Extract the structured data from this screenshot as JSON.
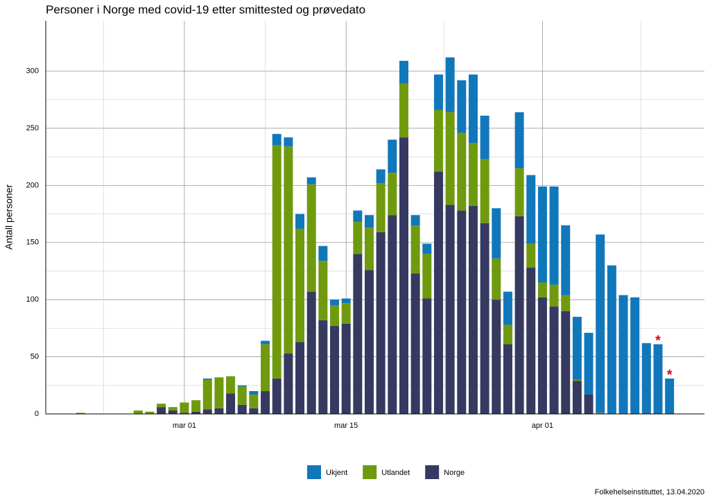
{
  "chart_data": {
    "type": "stacked_bar",
    "title": "Personer i Norge med covid-19 etter smittested og prøvedato",
    "y_label": "Antall personer",
    "source": "Folkehelseinstituttet, 13.04.2020",
    "categories": [
      null,
      null,
      null,
      null,
      null,
      null,
      null,
      null,
      null,
      "mar 01",
      null,
      null,
      null,
      null,
      null,
      null,
      null,
      null,
      null,
      null,
      null,
      null,
      null,
      "mar 15",
      null,
      null,
      null,
      null,
      null,
      null,
      null,
      null,
      null,
      null,
      null,
      null,
      null,
      null,
      null,
      null,
      "apr 01",
      null,
      null,
      null,
      null,
      null,
      null,
      null,
      null,
      null,
      null,
      null
    ],
    "series": [
      {
        "name": "Norge",
        "color": "#363a60",
        "values": [
          0,
          0,
          0,
          0,
          0,
          0,
          0,
          6,
          3,
          1,
          2,
          4,
          5,
          18,
          8,
          5,
          20,
          31,
          53,
          63,
          107,
          82,
          77,
          79,
          140,
          126,
          159,
          174,
          242,
          123,
          101,
          212,
          183,
          178,
          182,
          167,
          100,
          61,
          173,
          128,
          102,
          94,
          90,
          29,
          17,
          0,
          0,
          0,
          0,
          0,
          0,
          0
        ]
      },
      {
        "name": "Utlandet",
        "color": "#6f9a0e",
        "values": [
          1,
          0,
          0,
          0,
          0,
          3,
          2,
          3,
          3,
          9,
          10,
          26,
          27,
          15,
          16,
          12,
          41,
          204,
          181,
          99,
          94,
          52,
          18,
          18,
          28,
          37,
          43,
          37,
          47,
          42,
          39,
          54,
          81,
          68,
          55,
          56,
          36,
          17,
          42,
          21,
          13,
          19,
          14,
          1,
          0,
          1,
          0,
          0,
          0,
          0,
          0,
          0
        ]
      },
      {
        "name": "Ukjent",
        "color": "#1177bb",
        "values": [
          0,
          0,
          0,
          0,
          0,
          0,
          0,
          0,
          0,
          0,
          0,
          1,
          0,
          0,
          1,
          3,
          3,
          10,
          8,
          13,
          6,
          13,
          5,
          4,
          10,
          11,
          12,
          29,
          20,
          9,
          9,
          31,
          48,
          46,
          60,
          38,
          44,
          29,
          49,
          60,
          84,
          86,
          61,
          55,
          54,
          156,
          130,
          104,
          102,
          62,
          61,
          31
        ]
      }
    ],
    "annotations": [
      {
        "text": "*",
        "index": 50
      },
      {
        "text": "*",
        "index": 51
      }
    ],
    "ylim": [
      0,
      344
    ],
    "yticks": [
      0,
      50,
      100,
      150,
      200,
      250,
      300
    ],
    "grid": true
  }
}
